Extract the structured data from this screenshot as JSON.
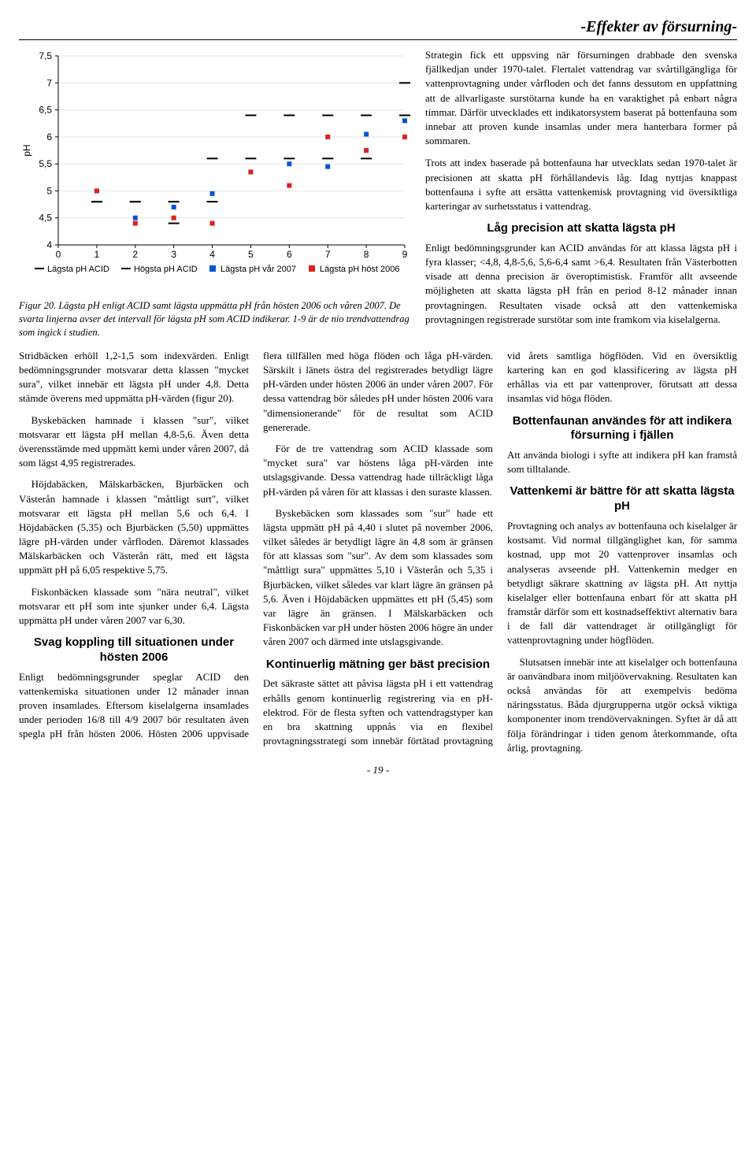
{
  "header": {
    "title": "-Effekter av försurning-"
  },
  "chart": {
    "type": "scatter-range",
    "y_label": "pH",
    "x_range": [
      0,
      9
    ],
    "y_range": [
      4,
      7.5
    ],
    "x_ticks": [
      0,
      1,
      2,
      3,
      4,
      5,
      6,
      7,
      8,
      9
    ],
    "y_ticks": [
      4,
      4.5,
      5,
      5.5,
      6,
      6.5,
      7,
      7.5
    ],
    "y_tick_labels": [
      "4",
      "4,5",
      "5",
      "5,5",
      "6",
      "6,5",
      "7",
      "7,5"
    ],
    "legend": [
      {
        "key": "low_acid",
        "label": "Lägsta pH ACID",
        "type": "dash",
        "color": "#000000"
      },
      {
        "key": "high_acid",
        "label": "Högsta pH ACID",
        "type": "dash",
        "color": "#000000"
      },
      {
        "key": "spring07",
        "label": "Lägsta pH vår 2007",
        "type": "square",
        "color": "#0055d4"
      },
      {
        "key": "autumn06",
        "label": "Lägsta pH höst 2006",
        "type": "square",
        "color": "#e02020"
      }
    ],
    "series": {
      "low_acid": [
        4.8,
        4.8,
        4.4,
        4.8,
        5.6,
        5.6,
        5.6,
        5.6,
        6.4
      ],
      "high_acid": [
        4.8,
        4.8,
        4.8,
        5.6,
        6.4,
        6.4,
        6.4,
        6.4,
        7.0
      ],
      "spring07": [
        5.0,
        4.5,
        4.7,
        4.95,
        5.35,
        5.5,
        5.45,
        6.05,
        6.3
      ],
      "autumn06": [
        5.0,
        4.4,
        4.5,
        4.4,
        5.35,
        5.1,
        6.0,
        5.75,
        6.0
      ]
    },
    "background": "#ffffff",
    "grid_color": "#e6e6e6",
    "caption_label": "Figur 20.",
    "caption": " Lägsta pH enligt ACID samt lägsta uppmätta pH från hösten 2006 och våren 2007. De svarta linjerna avser det intervall för lägsta pH som ACID indikerar. 1-9 är de nio trendvattendrag som ingick i studien."
  },
  "right_intro": {
    "p1": "Strategin fick ett uppsving när försurningen drabbade den svenska fjällkedjan under 1970-talet. Flertalet vattendrag var svårtillgängliga för vattenprovtagning under vårfloden och det fanns dessutom en uppfattning att de allvarligaste surstötarna kunde ha en varaktighet på enbart några timmar. Därför utvecklades ett indikatorsystem baserat på bottenfauna som innebar att proven kunde insamlas under mera hanterbara former på sommaren.",
    "p2": "Trots att index baserade på bottenfauna har utvecklats sedan 1970-talet är precisionen att skatta pH förhållandevis låg. Idag nyttjas knappast bottenfauna i syfte att ersätta vattenkemisk provtagning vid översiktliga karteringar av surhetsstatus i vattendrag.",
    "h2": "Låg precision att skatta lägsta pH",
    "p3": "Enligt bedömningsgrunder kan ACID användas för att klassa lägsta pH i fyra klasser; <4,8, 4,8-5,6, 5,6-6,4 samt >6,4. Resultaten från Västerbotten visade att denna precision är överoptimistisk. Framför allt avseende möjligheten att skatta lägsta pH från en period 8-12 månader innan provtagningen. Resultaten visade också att den vattenkemiska provtagningen registrerade surstötar som inte framkom via kiselalgerna."
  },
  "body": {
    "c1p1": "Stridbäcken erhöll 1,2-1,5 som indexvärden. Enligt bedömningsgrunder motsvarar detta klassen \"mycket sura\", vilket innebär ett lägsta pH under 4,8. Detta stämde överens med uppmätta pH-värden (figur 20).",
    "c1p2": "Byskebäcken hamnade i klassen \"sur\", vilket motsvarar ett lägsta pH mellan 4,8-5,6. Även detta överensstämde med uppmätt kemi under våren 2007, då som lägst 4,95 registrerades.",
    "c1p3": "Höjdabäcken, Mälskarbäcken, Bjurbäcken och Västerån hamnade i klassen \"måttligt surt\", vilket motsvarar ett lägsta pH mellan 5,6 och 6,4. I Höjdabäcken (5,35) och Bjurbäcken (5,50) uppmättes lägre pH-värden under vårfloden. Däremot klassades Mälskarbäcken och Västerån rätt, med ett lägsta uppmätt pH på 6,05 respektive 5,75.",
    "c1p4": "Fiskonbäcken klassade som \"nära neutral\", vilket motsvarar ett pH som inte sjunker under 6,4. Lägsta uppmätta pH under våren 2007 var 6,30.",
    "h2a": "Svag koppling till situationen under hösten 2006",
    "c1p5": "Enligt bedömningsgrunder speglar ACID den vattenkemiska situationen under 12 månader innan proven insamlades. Eftersom kiselalgerna insamlades under perioden 16/8 till 4/9 2007 bör resultaten även spegla pH från hösten 2006. Hösten 2006 uppvisade flera tillfällen med höga flöden och låga pH-värden. Särskilt i länets östra del registrerades betydligt lägre pH-värden under hösten 2006 än under våren 2007. För dessa vattendrag bör således pH under hösten 2006 vara \"dimensionerande\" för de resultat som ACID genererade.",
    "c2p1": "För de tre vattendrag som ACID klassade som \"mycket sura\" var höstens låga pH-värden inte utslagsgivande. Dessa vattendrag hade tillräckligt låga pH-värden på våren för att klassas i den suraste klassen.",
    "c2p2": "Byskebäcken som klassades som \"sur\" hade ett lägsta uppmätt pH på 4,40 i slutet på november 2006, vilket således är betydligt lägre än 4,8 som är gränsen för att klassas som \"sur\". Av dem som klassades som \"måttligt sura\" uppmättes 5,10 i Västerån och 5,35 i Bjurbäcken, vilket således var klart lägre än gränsen på 5,6. Även i Höjdabäcken uppmättes ett pH (5,45) som var lägre än gränsen. I Mälskarbäcken och Fiskonbäcken var pH under hösten 2006 högre än under våren 2007 och därmed inte utslagsgivande.",
    "h2b": "Kontinuerlig mätning ger bäst precision",
    "c2p3": "Det säkraste sättet att påvisa lägsta pH i ett vattendrag erhålls genom kontinuerlig registrering via en pH-elektrod. För de flesta syften och vattendragstyper kan en bra skattning uppnås via en flexibel provtagningsstrategi som innebär förtätad provtagning vid årets samtliga högflöden. Vid en översiktlig kartering kan en god klassificering av lägsta pH erhållas via ett par vattenprover, förutsatt att dessa insamlas vid höga flöden.",
    "h2c": "Bottenfaunan användes för att indikera försurning i fjällen",
    "c2p4": "Att använda biologi i syfte att indikera pH kan framstå som tilltalande.",
    "h2d": "Vattenkemi är bättre för att skatta lägsta pH",
    "c3p1": "Provtagning och analys av bottenfauna och kiselalger är kostsamt. Vid normal tillgänglighet kan, för samma kostnad, upp mot 20 vattenprover insamlas och analyseras avseende pH. Vattenkemin medger en betydligt säkrare skattning av lägsta pH. Att nyttja kiselalger eller bottenfauna enbart för att skatta pH framstår därför som ett kostnadseffektivt alternativ bara i de fall där vattendraget är otillgängligt för vattenprovtagning under högflöden.",
    "c3p2": "Slutsatsen innebär inte att kiselalger och bottenfauna är oanvändbara inom miljöövervakning. Resultaten kan också användas för att exempelvis bedöma näringsstatus. Båda djurgrupperna utgör också viktiga komponenter inom trendövervakningen. Syftet är då att följa förändringar i tiden genom återkommande, ofta årlig, provtagning."
  },
  "page_num": "- 19 -"
}
